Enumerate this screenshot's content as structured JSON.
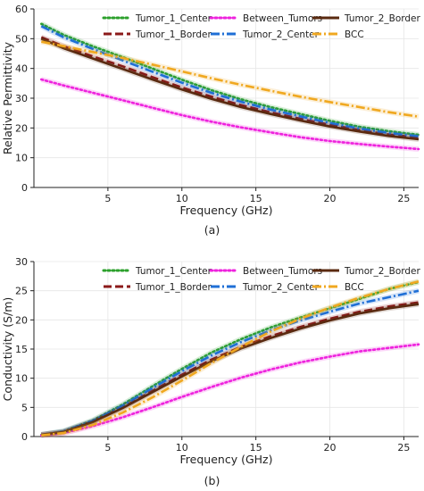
{
  "chart_data": [
    {
      "type": "line",
      "panel_label": "(a)",
      "title": "",
      "xlabel": "Frequency (GHz)",
      "ylabel": "Relative Permittivity",
      "xlim": [
        0,
        26
      ],
      "ylim": [
        0,
        60
      ],
      "xticks": [
        "5",
        "10",
        "15",
        "20",
        "25"
      ],
      "yticks": [
        "0",
        "10",
        "20",
        "30",
        "40",
        "50",
        "60"
      ],
      "grid": true,
      "legend": "top, 3 columns",
      "x": [
        0.5,
        2,
        4,
        6,
        8,
        10,
        12,
        14,
        16,
        18,
        20,
        22,
        24,
        26
      ],
      "series": [
        {
          "name": "Tumor_1_Center",
          "color": "#2ca02c",
          "dash": "dotted",
          "values": [
            55.0,
            51.3,
            47.4,
            43.8,
            40.0,
            36.2,
            32.7,
            29.6,
            27.0,
            24.7,
            22.4,
            20.4,
            18.9,
            17.7
          ]
        },
        {
          "name": "Tumor_1_Border",
          "color": "#8b1a1a",
          "dash": "dashed",
          "values": [
            50.5,
            47.5,
            44.0,
            40.7,
            37.1,
            33.6,
            30.5,
            27.7,
            25.3,
            23.1,
            21.1,
            19.3,
            17.8,
            16.8
          ]
        },
        {
          "name": "Between_Tumors",
          "color": "#ee22dd",
          "dash": "dotted",
          "values": [
            36.3,
            34.3,
            31.8,
            29.3,
            26.8,
            24.3,
            22.1,
            20.2,
            18.5,
            16.9,
            15.6,
            14.6,
            13.7,
            12.9
          ]
        },
        {
          "name": "Tumor_2_Center",
          "color": "#1f6fd6",
          "dash": "dashdot",
          "values": [
            54.2,
            50.5,
            46.5,
            42.7,
            38.9,
            35.2,
            31.8,
            28.8,
            26.2,
            23.9,
            21.7,
            19.8,
            18.3,
            17.2
          ]
        },
        {
          "name": "Tumor_2_Border",
          "color": "#5a2a10",
          "dash": "solid",
          "values": [
            50.0,
            46.8,
            43.3,
            39.8,
            36.3,
            32.9,
            29.8,
            27.0,
            24.7,
            22.5,
            20.5,
            18.8,
            17.3,
            16.2
          ]
        },
        {
          "name": "BCC",
          "color": "#f0a820",
          "dash": "dashdot",
          "values": [
            49.0,
            47.5,
            45.5,
            43.5,
            41.3,
            39.0,
            36.7,
            34.5,
            32.5,
            30.5,
            28.7,
            27.0,
            25.3,
            23.8
          ]
        }
      ]
    },
    {
      "type": "line",
      "panel_label": "(b)",
      "title": "",
      "xlabel": "Frequency (GHz)",
      "ylabel": "Conductivity (S/m)",
      "xlim": [
        0,
        26
      ],
      "ylim": [
        0,
        30
      ],
      "xticks": [
        "5",
        "10",
        "15",
        "20",
        "25"
      ],
      "yticks": [
        "0",
        "5",
        "10",
        "15",
        "20",
        "25",
        "30"
      ],
      "grid": true,
      "legend": "top, 3 columns",
      "x": [
        0.5,
        2,
        4,
        6,
        8,
        10,
        12,
        14,
        16,
        18,
        20,
        22,
        24,
        26
      ],
      "series": [
        {
          "name": "Tumor_1_Center",
          "color": "#2ca02c",
          "dash": "dotted",
          "values": [
            0.3,
            0.9,
            2.8,
            5.5,
            8.6,
            11.6,
            14.4,
            16.7,
            18.7,
            20.4,
            22.0,
            23.6,
            25.3,
            26.5
          ]
        },
        {
          "name": "Tumor_1_Border",
          "color": "#8b1a1a",
          "dash": "dashed",
          "values": [
            0.3,
            0.8,
            2.6,
            5.0,
            7.8,
            10.6,
            13.2,
            15.4,
            17.2,
            18.8,
            20.2,
            21.4,
            22.3,
            23.0
          ]
        },
        {
          "name": "Between_Tumors",
          "color": "#ee22dd",
          "dash": "dotted",
          "values": [
            0.2,
            0.6,
            1.8,
            3.3,
            5.0,
            6.8,
            8.5,
            10.1,
            11.5,
            12.7,
            13.7,
            14.6,
            15.2,
            15.8
          ]
        },
        {
          "name": "Tumor_2_Center",
          "color": "#1f6fd6",
          "dash": "dashdot",
          "values": [
            0.3,
            0.9,
            2.7,
            5.3,
            8.3,
            11.2,
            13.9,
            16.2,
            18.2,
            19.9,
            21.4,
            22.8,
            23.9,
            25.0
          ]
        },
        {
          "name": "Tumor_2_Border",
          "color": "#5a2a10",
          "dash": "solid",
          "values": [
            0.3,
            0.8,
            2.5,
            4.9,
            7.6,
            10.3,
            12.9,
            15.1,
            16.9,
            18.5,
            19.9,
            21.1,
            22.0,
            22.7
          ]
        },
        {
          "name": "BCC",
          "color": "#f0a820",
          "dash": "dashdot",
          "values": [
            0.2,
            0.6,
            2.0,
            4.1,
            6.7,
            9.6,
            12.6,
            15.4,
            18.0,
            20.2,
            22.1,
            23.8,
            25.3,
            26.6
          ]
        }
      ]
    }
  ]
}
